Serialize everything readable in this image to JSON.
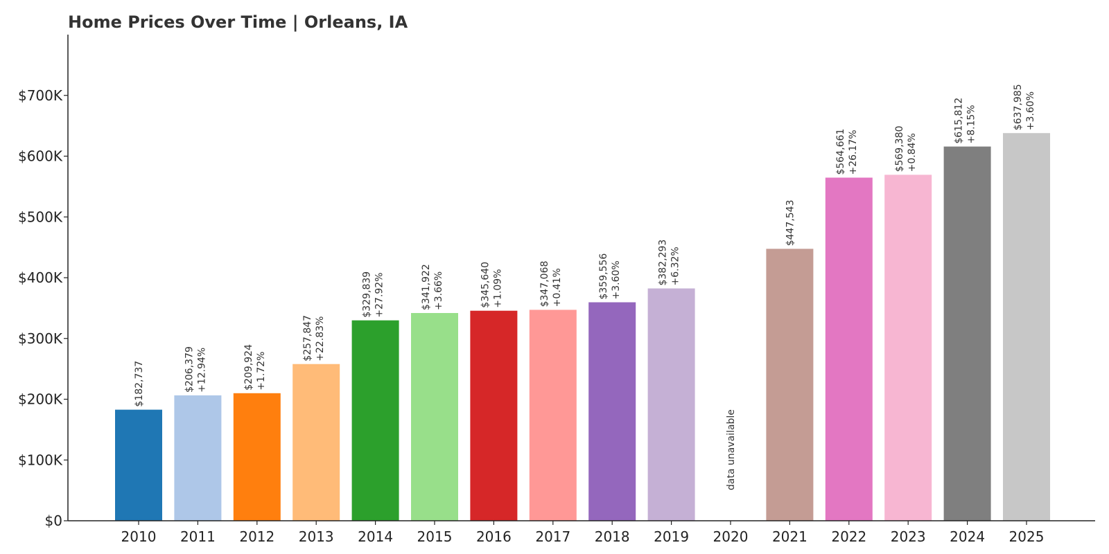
{
  "chart_data": {
    "type": "bar",
    "title": "Home Prices Over Time | Orleans, IA",
    "xlabel": "",
    "ylabel": "",
    "ylim": [
      0,
      800000
    ],
    "yticks": [
      0,
      100000,
      200000,
      300000,
      400000,
      500000,
      600000,
      700000
    ],
    "ytick_labels": [
      "$0",
      "$100K",
      "$200K",
      "$300K",
      "$400K",
      "$500K",
      "$600K",
      "$700K"
    ],
    "grid": false,
    "legend": "none",
    "categories": [
      "2010",
      "2011",
      "2012",
      "2013",
      "2014",
      "2015",
      "2016",
      "2017",
      "2018",
      "2019",
      "2020",
      "2021",
      "2022",
      "2023",
      "2024",
      "2025"
    ],
    "values": [
      182737,
      206379,
      209924,
      257847,
      329839,
      341922,
      345640,
      347068,
      359556,
      382293,
      null,
      447543,
      564661,
      569380,
      615812,
      637985
    ],
    "value_labels": [
      "$182,737",
      "$206,379",
      "$209,924",
      "$257,847",
      "$329,839",
      "$341,922",
      "$345,640",
      "$347,068",
      "$359,556",
      "$382,293",
      "",
      "$447,543",
      "$564,661",
      "$569,380",
      "$615,812",
      "$637,985"
    ],
    "change_labels": [
      "",
      "+12.94%",
      "+1.72%",
      "+22.83%",
      "+27.92%",
      "+3.66%",
      "+1.09%",
      "+0.41%",
      "+3.60%",
      "+6.32%",
      "",
      "",
      "+26.17%",
      "+0.84%",
      "+8.15%",
      "+3.60%"
    ],
    "missing_label": "data unavailable",
    "colors": [
      "#1f77b4",
      "#aec7e8",
      "#ff7f0e",
      "#ffbb78",
      "#2ca02c",
      "#98df8a",
      "#d62728",
      "#ff9896",
      "#9467bd",
      "#c5b0d5",
      "#8c564b",
      "#c49c94",
      "#e377c2",
      "#f7b6d2",
      "#7f7f7f",
      "#c7c7c7"
    ]
  }
}
